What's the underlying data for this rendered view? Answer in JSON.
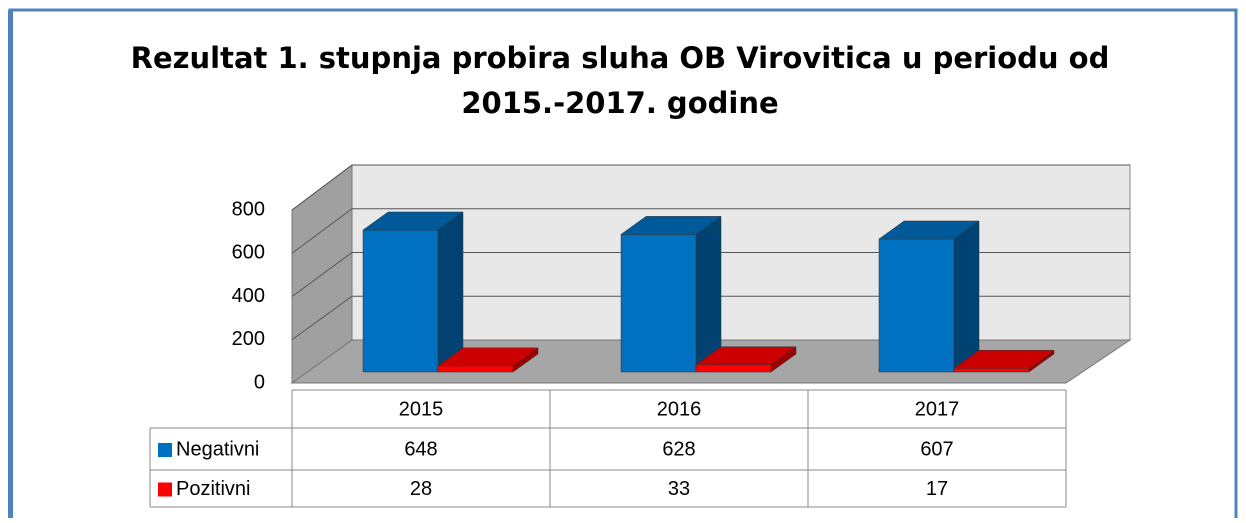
{
  "chart_data": {
    "type": "bar3d",
    "title": [
      "Rezultat 1. stupnja probira sluha  OB Virovitica u periodu od",
      "2015.-2017. godine"
    ],
    "categories": [
      "2015",
      "2016",
      "2017"
    ],
    "series": [
      {
        "name": "Negativni",
        "color": "#0070c0",
        "values": [
          648,
          628,
          607
        ]
      },
      {
        "name": "Pozitivni",
        "color": "#ff0000",
        "values": [
          28,
          33,
          17
        ]
      }
    ],
    "ylim": [
      0,
      800
    ],
    "yticks": [
      0,
      200,
      400,
      600,
      800
    ],
    "grid": true
  }
}
